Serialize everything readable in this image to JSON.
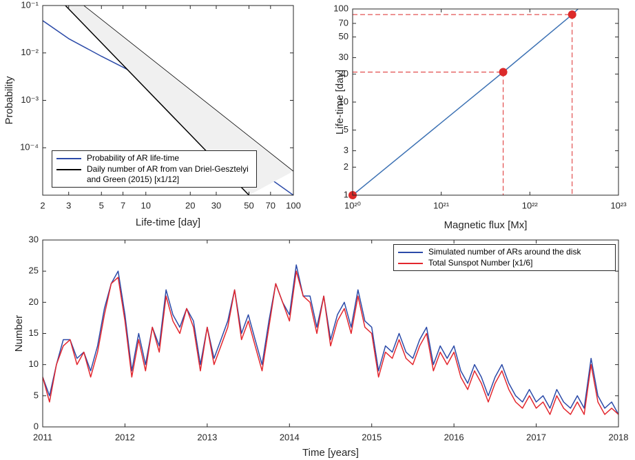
{
  "chart_data": [
    {
      "type": "line",
      "xscale": "log",
      "yscale": "log",
      "xlabel": "Life-time [day]",
      "ylabel": "Probability",
      "xlim": [
        2,
        100
      ],
      "ylim": [
        1e-05,
        0.1
      ],
      "xticks": [
        2,
        3,
        5,
        7,
        10,
        20,
        30,
        50,
        70,
        100
      ],
      "yticks": [
        {
          "value": 0.0001,
          "label": "10⁻⁴"
        },
        {
          "value": 0.001,
          "label": "10⁻³"
        },
        {
          "value": 0.01,
          "label": "10⁻²"
        },
        {
          "value": 0.1,
          "label": "10⁻¹"
        }
      ],
      "legend": "lower left",
      "series": [
        {
          "name": "Probability of AR life-time",
          "color": "#2b4aa8",
          "x": [
            2,
            3,
            5,
            7,
            10,
            20,
            30,
            50,
            70,
            100
          ],
          "values": [
            0.048,
            0.02,
            0.0085,
            0.005,
            0.0028,
            0.00043,
            0.00017,
            5e-05,
            2.2e-05,
            1e-05
          ]
        },
        {
          "name": "Daily number of AR from van Driel-Gesztelyi and Green (2015) [x1/12]",
          "color": "#000000",
          "fill": "#f0f0f0",
          "x_lower": [
            2.85,
            50
          ],
          "lower": [
            0.1,
            1e-05
          ],
          "x_upper": [
            3.8,
            100
          ],
          "upper": [
            0.1,
            3.2e-05
          ]
        }
      ]
    },
    {
      "type": "line",
      "xscale": "log",
      "yscale": "log",
      "xlabel": "Magnetic flux [Mx]",
      "ylabel": "Life-time [day]",
      "xlim": [
        1e+20,
        1e+23
      ],
      "ylim": [
        1,
        100
      ],
      "xticks": [
        {
          "value": 1e+20,
          "label": "10²⁰"
        },
        {
          "value": 1e+21,
          "label": "10²¹"
        },
        {
          "value": 1e+22,
          "label": "10²²"
        },
        {
          "value": 1e+23,
          "label": "10²³"
        }
      ],
      "yticks": [
        1,
        2,
        3,
        5,
        10,
        20,
        30,
        50,
        70,
        100
      ],
      "series": [
        {
          "color": "#3d72b4",
          "x": [
            1e+20,
            5e+21,
            3e+22,
            3.5e+22
          ],
          "values": [
            1,
            21,
            87,
            100
          ]
        }
      ],
      "points": {
        "color": "#dc2a2a",
        "guides": true,
        "x": [
          1e+20,
          5e+21,
          3e+22
        ],
        "values": [
          1,
          21,
          87
        ]
      }
    },
    {
      "type": "line",
      "xlabel": "Time [years]",
      "ylabel": "Number",
      "xlim": [
        2011,
        2018
      ],
      "ylim": [
        0,
        30
      ],
      "xticks": [
        2011,
        2012,
        2013,
        2014,
        2015,
        2016,
        2017,
        2018
      ],
      "yticks": [
        0,
        5,
        10,
        15,
        20,
        25,
        30
      ],
      "legend": "upper right",
      "x": [
        2011.0,
        2011.083,
        2011.167,
        2011.25,
        2011.333,
        2011.417,
        2011.5,
        2011.583,
        2011.667,
        2011.75,
        2011.833,
        2011.917,
        2012.0,
        2012.083,
        2012.167,
        2012.25,
        2012.333,
        2012.417,
        2012.5,
        2012.583,
        2012.667,
        2012.75,
        2012.833,
        2012.917,
        2013.0,
        2013.083,
        2013.167,
        2013.25,
        2013.333,
        2013.417,
        2013.5,
        2013.583,
        2013.667,
        2013.75,
        2013.833,
        2013.917,
        2014.0,
        2014.083,
        2014.167,
        2014.25,
        2014.333,
        2014.417,
        2014.5,
        2014.583,
        2014.667,
        2014.75,
        2014.833,
        2014.917,
        2015.0,
        2015.083,
        2015.167,
        2015.25,
        2015.333,
        2015.417,
        2015.5,
        2015.583,
        2015.667,
        2015.75,
        2015.833,
        2015.917,
        2016.0,
        2016.083,
        2016.167,
        2016.25,
        2016.333,
        2016.417,
        2016.5,
        2016.583,
        2016.667,
        2016.75,
        2016.833,
        2016.917,
        2017.0,
        2017.083,
        2017.167,
        2017.25,
        2017.333,
        2017.417,
        2017.5,
        2017.583,
        2017.667,
        2017.75,
        2017.833,
        2017.917,
        2018.0
      ],
      "series": [
        {
          "name": "Simulated number of ARs around the disk",
          "color": "#2b4aa8",
          "values": [
            8,
            5,
            10,
            14,
            14,
            11,
            12,
            9,
            13,
            19,
            23,
            25,
            18,
            9,
            15,
            10,
            16,
            13,
            22,
            18,
            16,
            19,
            17,
            10,
            16,
            11,
            14,
            17,
            22,
            15,
            18,
            14,
            10,
            17,
            23,
            20,
            18,
            26,
            21,
            21,
            16,
            21,
            14,
            18,
            20,
            16,
            22,
            17,
            16,
            9,
            13,
            12,
            15,
            12,
            11,
            14,
            16,
            10,
            13,
            11,
            13,
            9,
            7,
            10,
            8,
            5,
            8,
            10,
            7,
            5,
            4,
            6,
            4,
            5,
            3,
            6,
            4,
            3,
            5,
            3,
            11,
            5,
            3,
            4,
            2
          ]
        },
        {
          "name": "Total Sunspot Number [x1/6]",
          "color": "#e3262d",
          "values": [
            8,
            4,
            10,
            13,
            14,
            10,
            12,
            8,
            12,
            18,
            23,
            24,
            17,
            8,
            14,
            9,
            16,
            12,
            21,
            17,
            15,
            19,
            16,
            9,
            16,
            10,
            13,
            16,
            22,
            14,
            17,
            13,
            9,
            16,
            23,
            20,
            17,
            25,
            21,
            20,
            15,
            21,
            13,
            17,
            19,
            15,
            21,
            16,
            15,
            8,
            12,
            11,
            14,
            11,
            10,
            13,
            15,
            9,
            12,
            10,
            12,
            8,
            6,
            9,
            7,
            4,
            7,
            9,
            6,
            4,
            3,
            5,
            3,
            4,
            2,
            5,
            3,
            2,
            4,
            2,
            10,
            4,
            2,
            3,
            2
          ]
        }
      ]
    }
  ]
}
